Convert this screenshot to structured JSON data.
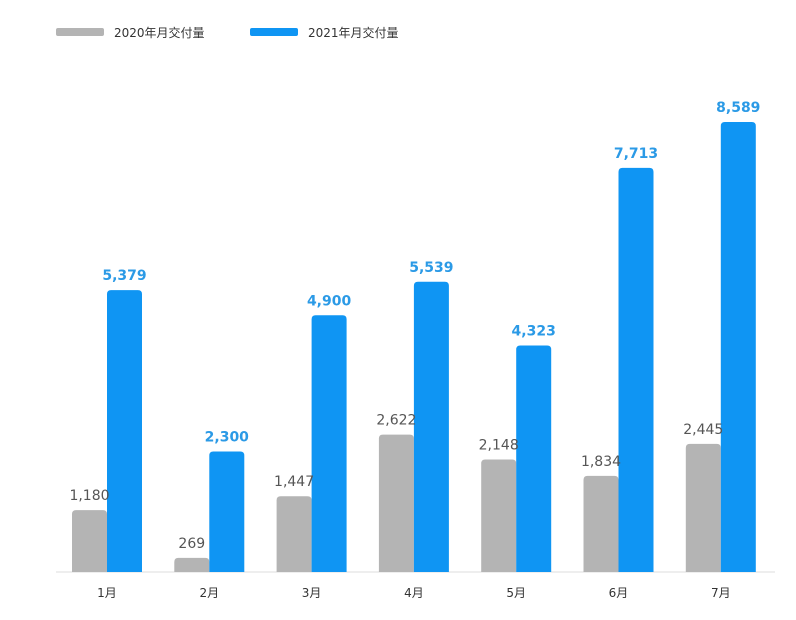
{
  "chart_data": {
    "type": "bar",
    "categories": [
      "1月",
      "2月",
      "3月",
      "4月",
      "5月",
      "6月",
      "7月"
    ],
    "series": [
      {
        "name": "2020年月交付量",
        "color": "#b4b4b4",
        "values": [
          1180,
          269,
          1447,
          2622,
          2148,
          1834,
          2445
        ],
        "labels": [
          "1,180",
          "269",
          "1,447",
          "2,622",
          "2,148",
          "1,834",
          "2,445"
        ],
        "label_color": "#555555"
      },
      {
        "name": "2021年月交付量",
        "color": "#0f95f3",
        "values": [
          5379,
          2300,
          4900,
          5539,
          4323,
          7713,
          8589
        ],
        "labels": [
          "5,379",
          "2,300",
          "4,900",
          "5,539",
          "4,323",
          "7,713",
          "8,589"
        ],
        "label_color": "#2b9ae6"
      }
    ],
    "legend_position": "top-left",
    "grid": false,
    "ylim": [
      0,
      8589
    ]
  }
}
